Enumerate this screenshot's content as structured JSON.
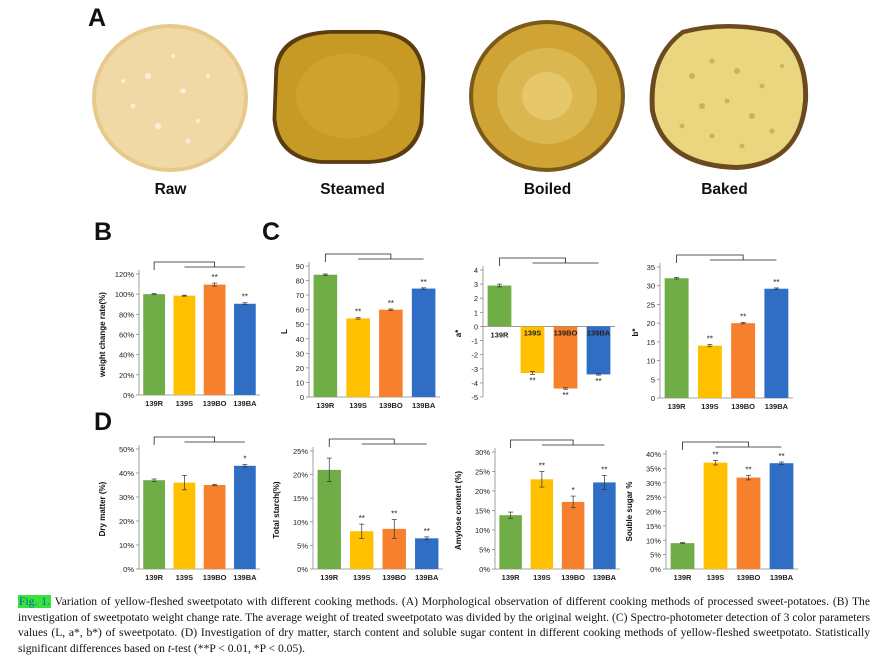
{
  "panel_letters": {
    "A": "A",
    "B": "B",
    "C": "C",
    "D": "D"
  },
  "photos": [
    {
      "label": "Raw",
      "flesh": "#f1d9a6",
      "edge": "#e8c98c",
      "spot": "#f8efd9"
    },
    {
      "label": "Steamed",
      "flesh": "#c69a24",
      "edge": "#6a4a12",
      "spot": "#d8ae3a"
    },
    {
      "label": "Boiled",
      "flesh": "#d3aa3a",
      "edge": "#7a5a1a",
      "spot": "#e6c86a"
    },
    {
      "label": "Baked",
      "flesh": "#e9d37a",
      "edge": "#6b4a20",
      "spot": "#c8a74a"
    }
  ],
  "colors": {
    "139R": "#70ad47",
    "139S": "#ffc000",
    "139BO": "#f6802b",
    "139BA": "#2f6ec4"
  },
  "chart_data": [
    {
      "id": "weight",
      "type": "bar",
      "ylabel": "weight change rate(%)",
      "categories": [
        "139R",
        "139S",
        "139BO",
        "139BA"
      ],
      "values": [
        100,
        98.5,
        109.5,
        90.5
      ],
      "errors": [
        0.5,
        0.5,
        1.5,
        1.0
      ],
      "ylim": [
        0,
        120
      ],
      "ticks": [
        0,
        20,
        40,
        60,
        80,
        100,
        120
      ],
      "tick_suffix": "%",
      "sig": [
        "",
        "",
        "**",
        "**"
      ],
      "bracket": "one-to-all"
    },
    {
      "id": "L",
      "type": "bar",
      "ylabel": "L",
      "categories": [
        "139R",
        "139S",
        "139BO",
        "139BA"
      ],
      "values": [
        84,
        54,
        60,
        74.5
      ],
      "errors": [
        0.5,
        0.5,
        0.5,
        0.5
      ],
      "ylim": [
        0,
        90
      ],
      "ticks": [
        0,
        10,
        20,
        30,
        40,
        50,
        60,
        70,
        80,
        90
      ],
      "tick_suffix": "",
      "sig": [
        "",
        "**",
        "**",
        "**"
      ],
      "bracket": "one-to-all"
    },
    {
      "id": "a",
      "type": "bar",
      "ylabel": "a*",
      "categories": [
        "139R",
        "139S",
        "139BO",
        "139BA"
      ],
      "values": [
        2.9,
        -3.3,
        -4.4,
        -3.4
      ],
      "errors": [
        0.1,
        0.1,
        0.05,
        0.05
      ],
      "ylim": [
        -5,
        4
      ],
      "ticks": [
        -5,
        -4,
        -3,
        -2,
        -1,
        0,
        1,
        2,
        3,
        4
      ],
      "tick_suffix": "",
      "sig": [
        "",
        "**",
        "**",
        "**"
      ],
      "bracket": "one-to-all",
      "inside_labels": true
    },
    {
      "id": "b",
      "type": "bar",
      "ylabel": "b*",
      "categories": [
        "139R",
        "139S",
        "139BO",
        "139BA"
      ],
      "values": [
        32,
        14,
        20,
        29.2
      ],
      "errors": [
        0.2,
        0.3,
        0.2,
        0.2
      ],
      "ylim": [
        0,
        35
      ],
      "ticks": [
        0,
        5,
        10,
        15,
        20,
        25,
        30,
        35
      ],
      "tick_suffix": "",
      "sig": [
        "",
        "**",
        "**",
        "**"
      ],
      "bracket": "one-to-all"
    },
    {
      "id": "dry",
      "type": "bar",
      "ylabel": "Dry matter (%)",
      "categories": [
        "139R",
        "139S",
        "139BO",
        "139BA"
      ],
      "values": [
        37,
        36,
        35,
        43
      ],
      "errors": [
        0.5,
        3.0,
        0.3,
        0.5
      ],
      "ylim": [
        0,
        50
      ],
      "ticks": [
        0,
        10,
        20,
        30,
        40,
        50
      ],
      "tick_suffix": "%",
      "sig": [
        "",
        "",
        "",
        "*"
      ],
      "bracket": "one-to-all"
    },
    {
      "id": "starch",
      "type": "bar",
      "ylabel": "Total starch(%)",
      "categories": [
        "139R",
        "139S",
        "139BO",
        "139BA"
      ],
      "values": [
        21,
        8,
        8.5,
        6.5
      ],
      "errors": [
        2.5,
        1.5,
        2.0,
        0.3
      ],
      "ylim": [
        0,
        25
      ],
      "ticks": [
        0,
        5,
        10,
        15,
        20,
        25
      ],
      "tick_suffix": "%",
      "sig": [
        "",
        "**",
        "**",
        "**"
      ],
      "bracket": "one-to-all"
    },
    {
      "id": "amylose",
      "type": "bar",
      "ylabel": "Amylose content (%)",
      "categories": [
        "139R",
        "139S",
        "139BO",
        "139BA"
      ],
      "values": [
        13.8,
        23,
        17.2,
        22.2
      ],
      "errors": [
        0.8,
        2.0,
        1.5,
        1.8
      ],
      "ylim": [
        0,
        30
      ],
      "ticks": [
        0,
        5,
        10,
        15,
        20,
        25,
        30
      ],
      "tick_suffix": "%",
      "sig": [
        "",
        "**",
        "*",
        "**"
      ],
      "bracket": "one-to-all"
    },
    {
      "id": "sugar",
      "type": "bar",
      "ylabel": "Souble sugar %",
      "categories": [
        "139R",
        "139S",
        "139BO",
        "139BA"
      ],
      "values": [
        9,
        37,
        31.8,
        36.8
      ],
      "errors": [
        0.2,
        0.8,
        0.8,
        0.4
      ],
      "ylim": [
        0,
        40
      ],
      "ticks": [
        0,
        5,
        10,
        15,
        20,
        25,
        30,
        35,
        40
      ],
      "tick_suffix": "%",
      "sig": [
        "",
        "**",
        "**",
        "**"
      ],
      "bracket": "one-to-all"
    }
  ],
  "caption": {
    "fig_label": "Fig. 1.",
    "text": "Variation of yellow-fleshed sweetpotato with different cooking methods. (A) Morphological observation of different cooking methods of processed sweet-potatoes. (B) The investigation of sweetpotato weight change rate. The average weight of treated sweetpotato was divided by the original weight. (C) Spectro-photometer detection of 3 color parameters values (L, a*, b*) of sweetpotato. (D) Investigation of dry matter, starch content and soluble sugar content in different cooking methods of yellow-fleshed sweetpotato. Statistically significant differences based on ",
    "ttest": "t",
    "text_end": "-test (**P < 0.01, *P < 0.05)."
  }
}
